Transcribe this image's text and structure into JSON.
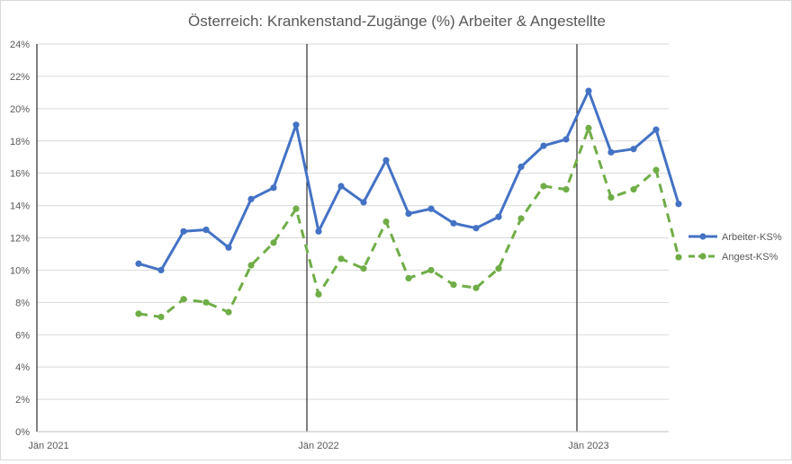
{
  "chart_data": {
    "type": "line",
    "title": "Österreich: Krankenstand-Zugänge (%) Arbeiter & Angestellte",
    "y_ticks": [
      "0%",
      "2%",
      "4%",
      "6%",
      "8%",
      "10%",
      "12%",
      "14%",
      "16%",
      "18%",
      "20%",
      "22%",
      "24%"
    ],
    "ylim": [
      0,
      24
    ],
    "x_ticks": [
      "Jän 2021",
      "Jän 2022",
      "Jän 2023"
    ],
    "x_months_range": [
      "Jän 2021",
      "Mai 2023"
    ],
    "x_domain": [
      {
        "year": 2021,
        "month": 1
      },
      {
        "year": 2023,
        "month": 5
      }
    ],
    "vertical_lines_at": [
      "Jän 2022",
      "Jän 2023"
    ],
    "grid": "horizontal",
    "legend_position": "right",
    "series": [
      {
        "name": "Arbeiter-KS%",
        "color": "#4472c4",
        "dash": "solid",
        "points": [
          {
            "year": 2021,
            "month": 5,
            "value": 10.4
          },
          {
            "year": 2021,
            "month": 6,
            "value": 10.0
          },
          {
            "year": 2021,
            "month": 7,
            "value": 12.4
          },
          {
            "year": 2021,
            "month": 8,
            "value": 12.5
          },
          {
            "year": 2021,
            "month": 9,
            "value": 11.4
          },
          {
            "year": 2021,
            "month": 10,
            "value": 14.4
          },
          {
            "year": 2021,
            "month": 11,
            "value": 15.1
          },
          {
            "year": 2021,
            "month": 12,
            "value": 19.0
          },
          {
            "year": 2022,
            "month": 1,
            "value": 12.4
          },
          {
            "year": 2022,
            "month": 2,
            "value": 15.2
          },
          {
            "year": 2022,
            "month": 3,
            "value": 14.2
          },
          {
            "year": 2022,
            "month": 4,
            "value": 16.8
          },
          {
            "year": 2022,
            "month": 5,
            "value": 13.5
          },
          {
            "year": 2022,
            "month": 6,
            "value": 13.8
          },
          {
            "year": 2022,
            "month": 7,
            "value": 12.9
          },
          {
            "year": 2022,
            "month": 8,
            "value": 12.6
          },
          {
            "year": 2022,
            "month": 9,
            "value": 13.3
          },
          {
            "year": 2022,
            "month": 10,
            "value": 16.4
          },
          {
            "year": 2022,
            "month": 11,
            "value": 17.7
          },
          {
            "year": 2022,
            "month": 12,
            "value": 18.1
          },
          {
            "year": 2023,
            "month": 1,
            "value": 21.1
          },
          {
            "year": 2023,
            "month": 2,
            "value": 17.3
          },
          {
            "year": 2023,
            "month": 3,
            "value": 17.5
          },
          {
            "year": 2023,
            "month": 4,
            "value": 18.7
          },
          {
            "year": 2023,
            "month": 5,
            "value": 14.1
          }
        ]
      },
      {
        "name": "Angest-KS%",
        "color": "#70ad47",
        "dash": "dashed",
        "points": [
          {
            "year": 2021,
            "month": 5,
            "value": 7.3
          },
          {
            "year": 2021,
            "month": 6,
            "value": 7.1
          },
          {
            "year": 2021,
            "month": 7,
            "value": 8.2
          },
          {
            "year": 2021,
            "month": 8,
            "value": 8.0
          },
          {
            "year": 2021,
            "month": 9,
            "value": 7.4
          },
          {
            "year": 2021,
            "month": 10,
            "value": 10.3
          },
          {
            "year": 2021,
            "month": 11,
            "value": 11.7
          },
          {
            "year": 2021,
            "month": 12,
            "value": 13.8
          },
          {
            "year": 2022,
            "month": 1,
            "value": 8.5
          },
          {
            "year": 2022,
            "month": 2,
            "value": 10.7
          },
          {
            "year": 2022,
            "month": 3,
            "value": 10.1
          },
          {
            "year": 2022,
            "month": 4,
            "value": 13.0
          },
          {
            "year": 2022,
            "month": 5,
            "value": 9.5
          },
          {
            "year": 2022,
            "month": 6,
            "value": 10.0
          },
          {
            "year": 2022,
            "month": 7,
            "value": 9.1
          },
          {
            "year": 2022,
            "month": 8,
            "value": 8.9
          },
          {
            "year": 2022,
            "month": 9,
            "value": 10.1
          },
          {
            "year": 2022,
            "month": 10,
            "value": 13.2
          },
          {
            "year": 2022,
            "month": 11,
            "value": 15.2
          },
          {
            "year": 2022,
            "month": 12,
            "value": 15.0
          },
          {
            "year": 2023,
            "month": 1,
            "value": 18.8
          },
          {
            "year": 2023,
            "month": 2,
            "value": 14.5
          },
          {
            "year": 2023,
            "month": 3,
            "value": 15.0
          },
          {
            "year": 2023,
            "month": 4,
            "value": 16.2
          },
          {
            "year": 2023,
            "month": 5,
            "value": 10.8
          }
        ]
      }
    ]
  }
}
